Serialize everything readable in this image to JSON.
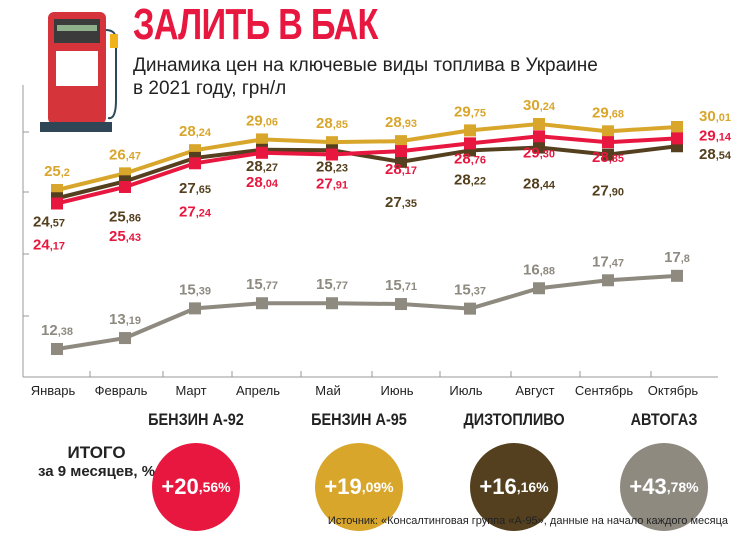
{
  "header": {
    "title": "ЗАЛИТЬ В БАК",
    "subtitle_line1": "Динамика цен на ключевые виды топлива в Украине",
    "subtitle_line2": "в 2021 году, грн/л"
  },
  "chart_data": {
    "type": "line",
    "title": "ЗАЛИТЬ В БАК",
    "subtitle": "Динамика цен на ключевые виды топлива в Украине в 2021 году, грн/л",
    "categories": [
      "Январь",
      "Февраль",
      "Март",
      "Апрель",
      "Май",
      "Июнь",
      "Июль",
      "Август",
      "Сентябрь",
      "Октябрь"
    ],
    "series": [
      {
        "name": "БЕНЗИН А-95",
        "color": "#d9a62c",
        "values": [
          25.2,
          26.47,
          28.24,
          29.06,
          28.85,
          28.93,
          29.75,
          30.24,
          29.68,
          30.01
        ],
        "labels": [
          "25,2",
          "26,47",
          "28,24",
          "29,06",
          "28,85",
          "28,93",
          "29,75",
          "30,24",
          "29,68",
          "30,01"
        ]
      },
      {
        "name": "ДИЗТОПЛИВО",
        "color": "#54401e",
        "values": [
          24.57,
          25.86,
          27.65,
          28.27,
          28.23,
          27.35,
          28.22,
          28.44,
          27.9,
          28.54
        ],
        "labels": [
          "24,57",
          "25,86",
          "27,65",
          "28,27",
          "28,23",
          "27,35",
          "28,22",
          "28,44",
          "27,90",
          "28,54"
        ]
      },
      {
        "name": "БЕНЗИН А-92",
        "color": "#e8173f",
        "values": [
          24.17,
          25.43,
          27.24,
          28.04,
          27.91,
          28.17,
          28.76,
          29.3,
          28.85,
          29.14
        ],
        "labels": [
          "24,17",
          "25,43",
          "27,24",
          "28,04",
          "27,91",
          "28,17",
          "28,76",
          "29,30",
          "28,85",
          "29,14"
        ]
      },
      {
        "name": "АВТОГАЗ",
        "color": "#8e8a80",
        "values": [
          12.38,
          13.19,
          15.39,
          15.77,
          15.77,
          15.71,
          15.37,
          16.88,
          17.47,
          17.8
        ],
        "labels": [
          "12,38",
          "13,19",
          "15,39",
          "15,77",
          "15,77",
          "15,71",
          "15,37",
          "16,88",
          "17,47",
          "17,8"
        ]
      }
    ],
    "xlabel": "",
    "ylabel": "",
    "grid": false,
    "legend": "bottom"
  },
  "totals": {
    "label_line1": "ИТОГО",
    "label_line2": "за 9 месяцев, %",
    "items": [
      {
        "name": "БЕНЗИН А-92",
        "int": "+20",
        "dec": ",56%",
        "color": "#e8173f"
      },
      {
        "name": "БЕНЗИН А-95",
        "int": "+19",
        "dec": ",09%",
        "color": "#d9a62c"
      },
      {
        "name": "ДИЗТОПЛИВО",
        "int": "+16",
        "dec": ",16%",
        "color": "#54401e"
      },
      {
        "name": "АВТОГАЗ",
        "int": "+43",
        "dec": ",78%",
        "color": "#8e8a80"
      }
    ]
  },
  "source": "Источник: «Консалтинговая группа «А-95», данные на начало каждого месяца"
}
